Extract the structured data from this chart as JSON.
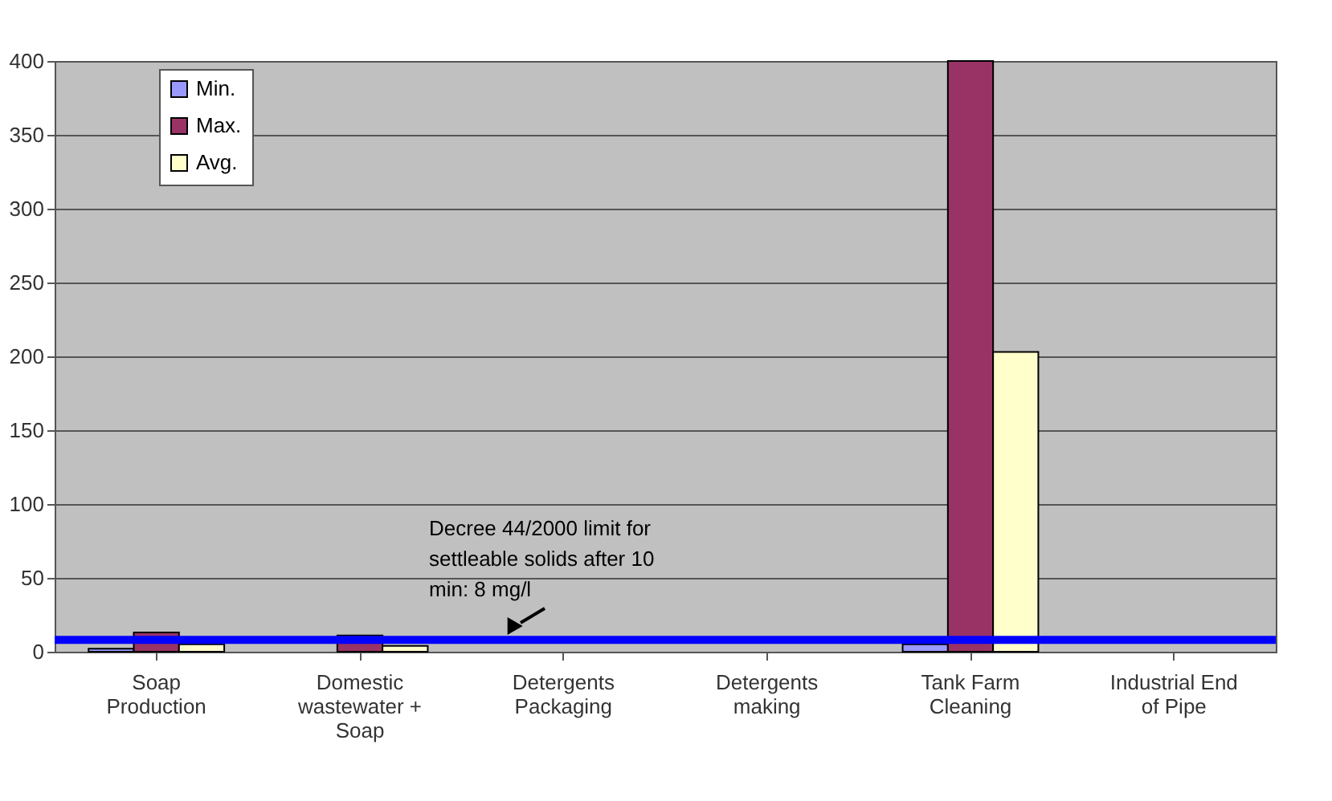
{
  "chart_data": {
    "type": "bar",
    "categories": [
      "Soap Production",
      "Domestic wastewater + Soap",
      "Detergents Packaging",
      "Detergents making",
      "Tank Farm Cleaning",
      "Industrial End of Pipe"
    ],
    "series": [
      {
        "name": "Min.",
        "color": "#9999ff",
        "values": [
          2,
          null,
          null,
          null,
          5,
          null
        ]
      },
      {
        "name": "Max.",
        "color": "#993366",
        "values": [
          13,
          11,
          null,
          null,
          400,
          null
        ]
      },
      {
        "name": "Avg.",
        "color": "#ffffcc",
        "values": [
          5,
          4,
          null,
          null,
          203,
          null
        ]
      }
    ],
    "ylim": [
      0,
      400
    ],
    "yticks": [
      0,
      50,
      100,
      150,
      200,
      250,
      300,
      350,
      400
    ],
    "ref_lines": [
      {
        "axis": "y",
        "value": 8,
        "label": "Decree 44/2000 limit for settleable solids after 10 min: 8 mg/l",
        "color": "#0000ff"
      }
    ],
    "grid": "y",
    "legend": "top left"
  }
}
